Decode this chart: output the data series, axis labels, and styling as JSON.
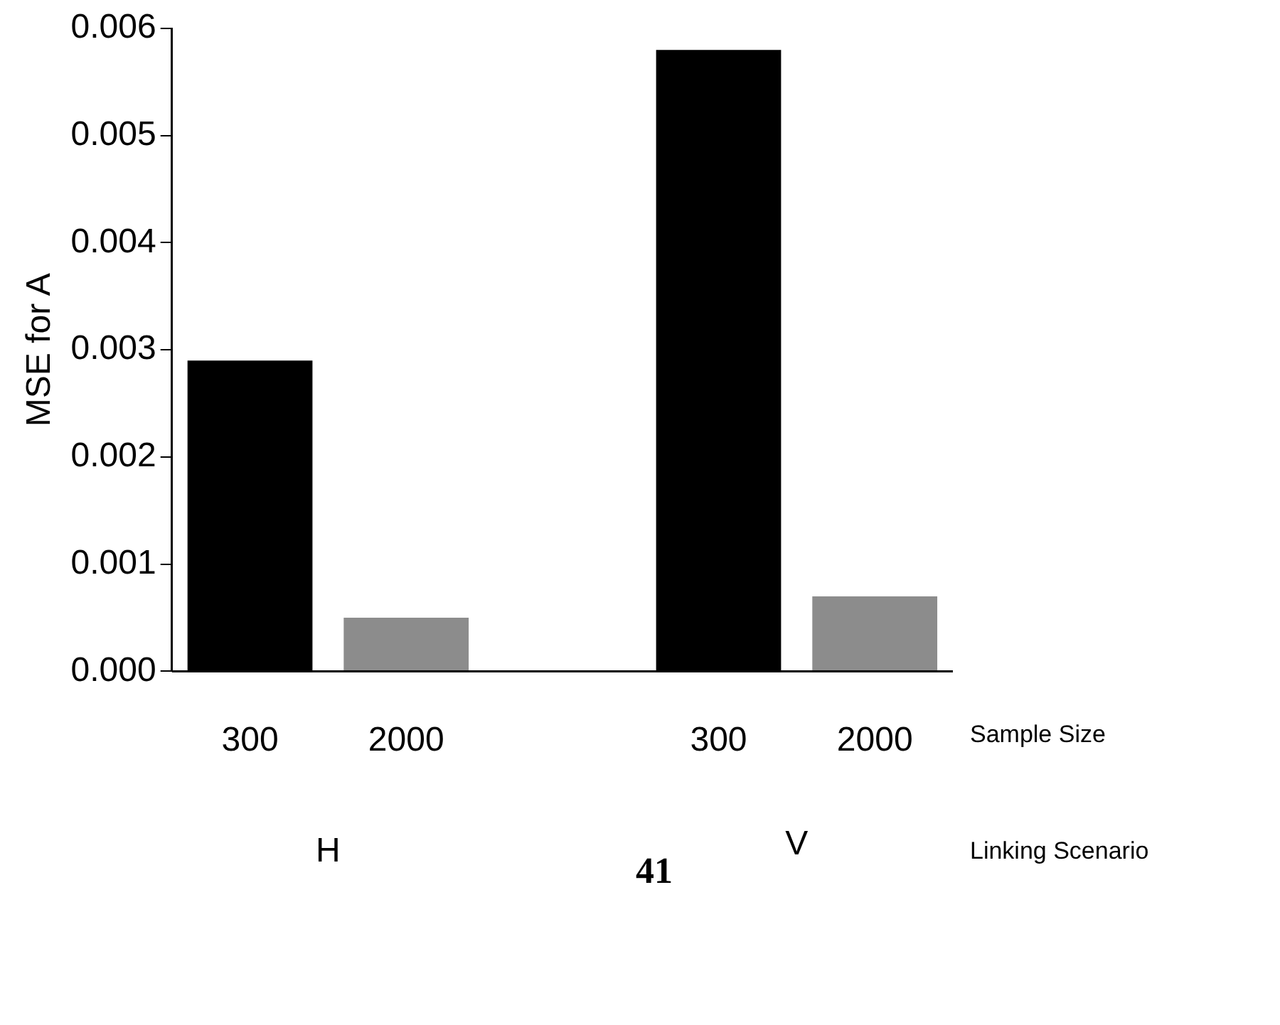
{
  "chart_data": {
    "type": "bar",
    "ylabel": "MSE for A",
    "categories": [
      "300",
      "2000",
      null,
      "300",
      "2000"
    ],
    "values": [
      0.0029,
      0.0005,
      null,
      0.0058,
      0.0007
    ],
    "colors": [
      "#000000",
      "#8c8c8c",
      "#ffffff",
      "#000000",
      "#8c8c8c"
    ],
    "ylim": [
      0,
      0.006
    ],
    "yticks": [
      {
        "value": 0,
        "label": "0.000"
      },
      {
        "value": 0.001,
        "label": "0.001"
      },
      {
        "value": 0.002,
        "label": "0.002"
      },
      {
        "value": 0.003,
        "label": "0.003"
      },
      {
        "value": 0.004,
        "label": "0.004"
      },
      {
        "value": 0.005,
        "label": "0.005"
      },
      {
        "value": 0.006,
        "label": "0.006"
      }
    ],
    "grid": false,
    "legend": false,
    "annotations": [
      "Sample Size",
      "H",
      "V",
      "Linking Scenario",
      "41"
    ]
  }
}
